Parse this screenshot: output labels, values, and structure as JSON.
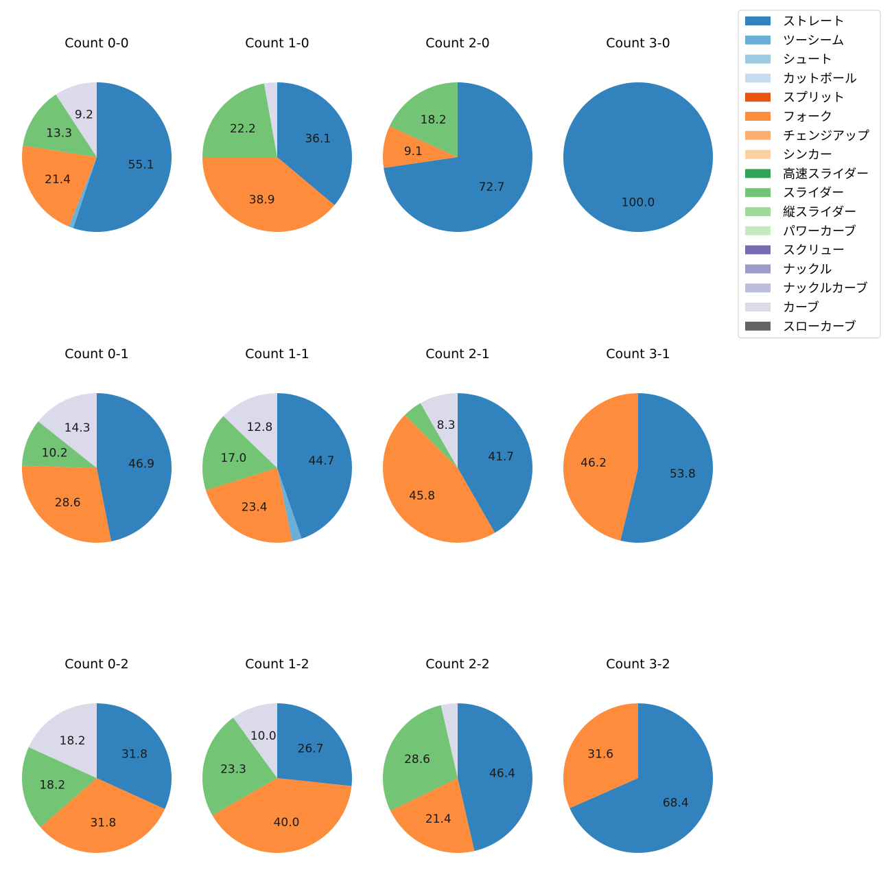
{
  "legend": {
    "items": [
      {
        "label": "ストレート",
        "color": "#3182bd"
      },
      {
        "label": "ツーシーム",
        "color": "#6baed6"
      },
      {
        "label": "シュート",
        "color": "#9ecae1"
      },
      {
        "label": "カットボール",
        "color": "#c6dbef"
      },
      {
        "label": "スプリット",
        "color": "#e6550d"
      },
      {
        "label": "フォーク",
        "color": "#fd8d3c"
      },
      {
        "label": "チェンジアップ",
        "color": "#fdae6b"
      },
      {
        "label": "シンカー",
        "color": "#fdd0a2"
      },
      {
        "label": "高速スライダー",
        "color": "#31a354"
      },
      {
        "label": "スライダー",
        "color": "#74c476"
      },
      {
        "label": "縦スライダー",
        "color": "#a1d99b"
      },
      {
        "label": "パワーカーブ",
        "color": "#c7e9c0"
      },
      {
        "label": "スクリュー",
        "color": "#756bb1"
      },
      {
        "label": "ナックル",
        "color": "#9e9ac8"
      },
      {
        "label": "ナックルカーブ",
        "color": "#bcbddc"
      },
      {
        "label": "カーブ",
        "color": "#dadaeb"
      },
      {
        "label": "スローカーブ",
        "color": "#636363"
      }
    ]
  },
  "chart_data": [
    {
      "type": "pie",
      "title": "Count 0-0",
      "slices": [
        {
          "category": "ストレート",
          "value": 55.1,
          "label": "55.1"
        },
        {
          "category": "ツーシーム",
          "value": 1.0,
          "label": ""
        },
        {
          "category": "フォーク",
          "value": 21.4,
          "label": "21.4"
        },
        {
          "category": "スライダー",
          "value": 13.3,
          "label": "13.3"
        },
        {
          "category": "カーブ",
          "value": 9.2,
          "label": "9.2"
        }
      ]
    },
    {
      "type": "pie",
      "title": "Count 1-0",
      "slices": [
        {
          "category": "ストレート",
          "value": 36.1,
          "label": "36.1"
        },
        {
          "category": "フォーク",
          "value": 38.9,
          "label": "38.9"
        },
        {
          "category": "スライダー",
          "value": 22.2,
          "label": "22.2"
        },
        {
          "category": "カーブ",
          "value": 2.8,
          "label": ""
        }
      ]
    },
    {
      "type": "pie",
      "title": "Count 2-0",
      "slices": [
        {
          "category": "ストレート",
          "value": 72.7,
          "label": "72.7"
        },
        {
          "category": "フォーク",
          "value": 9.1,
          "label": "9.1"
        },
        {
          "category": "スライダー",
          "value": 18.2,
          "label": "18.2"
        }
      ]
    },
    {
      "type": "pie",
      "title": "Count 3-0",
      "slices": [
        {
          "category": "ストレート",
          "value": 100.0,
          "label": "100.0"
        }
      ]
    },
    {
      "type": "pie",
      "title": "Count 0-1",
      "slices": [
        {
          "category": "ストレート",
          "value": 46.9,
          "label": "46.9"
        },
        {
          "category": "フォーク",
          "value": 28.6,
          "label": "28.6"
        },
        {
          "category": "スライダー",
          "value": 10.2,
          "label": "10.2"
        },
        {
          "category": "カーブ",
          "value": 14.3,
          "label": "14.3"
        }
      ]
    },
    {
      "type": "pie",
      "title": "Count 1-1",
      "slices": [
        {
          "category": "ストレート",
          "value": 44.7,
          "label": "44.7"
        },
        {
          "category": "ツーシーム",
          "value": 2.1,
          "label": ""
        },
        {
          "category": "フォーク",
          "value": 23.4,
          "label": "23.4"
        },
        {
          "category": "スライダー",
          "value": 17.0,
          "label": "17.0"
        },
        {
          "category": "カーブ",
          "value": 12.8,
          "label": "12.8"
        }
      ]
    },
    {
      "type": "pie",
      "title": "Count 2-1",
      "slices": [
        {
          "category": "ストレート",
          "value": 41.7,
          "label": "41.7"
        },
        {
          "category": "フォーク",
          "value": 45.8,
          "label": "45.8"
        },
        {
          "category": "スライダー",
          "value": 4.2,
          "label": ""
        },
        {
          "category": "カーブ",
          "value": 8.3,
          "label": "8.3"
        }
      ]
    },
    {
      "type": "pie",
      "title": "Count 3-1",
      "slices": [
        {
          "category": "ストレート",
          "value": 53.8,
          "label": "53.8"
        },
        {
          "category": "フォーク",
          "value": 46.2,
          "label": "46.2"
        }
      ]
    },
    {
      "type": "pie",
      "title": "Count 0-2",
      "slices": [
        {
          "category": "ストレート",
          "value": 31.8,
          "label": "31.8"
        },
        {
          "category": "フォーク",
          "value": 31.8,
          "label": "31.8"
        },
        {
          "category": "スライダー",
          "value": 18.2,
          "label": "18.2"
        },
        {
          "category": "カーブ",
          "value": 18.2,
          "label": "18.2"
        }
      ]
    },
    {
      "type": "pie",
      "title": "Count 1-2",
      "slices": [
        {
          "category": "ストレート",
          "value": 26.7,
          "label": "26.7"
        },
        {
          "category": "フォーク",
          "value": 40.0,
          "label": "40.0"
        },
        {
          "category": "スライダー",
          "value": 23.3,
          "label": "23.3"
        },
        {
          "category": "カーブ",
          "value": 10.0,
          "label": "10.0"
        }
      ]
    },
    {
      "type": "pie",
      "title": "Count 2-2",
      "slices": [
        {
          "category": "ストレート",
          "value": 46.4,
          "label": "46.4"
        },
        {
          "category": "フォーク",
          "value": 21.4,
          "label": "21.4"
        },
        {
          "category": "スライダー",
          "value": 28.6,
          "label": "28.6"
        },
        {
          "category": "カーブ",
          "value": 3.6,
          "label": ""
        }
      ]
    },
    {
      "type": "pie",
      "title": "Count 3-2",
      "slices": [
        {
          "category": "ストレート",
          "value": 68.4,
          "label": "68.4"
        },
        {
          "category": "フォーク",
          "value": 31.6,
          "label": "31.6"
        }
      ]
    }
  ]
}
